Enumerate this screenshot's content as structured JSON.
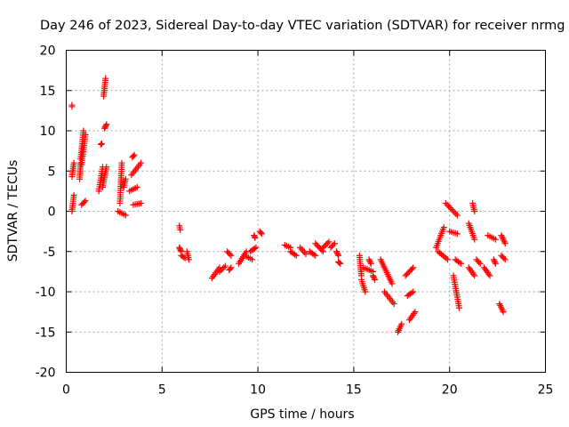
{
  "chart_data": {
    "type": "scatter",
    "title": "Day 246 of 2023, Sidereal Day-to-day VTEC variation (SDTVAR) for receiver nrmg",
    "xlabel": "GPS time / hours",
    "ylabel": "SDTVAR / TECUs",
    "xlim": [
      0,
      25
    ],
    "ylim": [
      -20,
      20
    ],
    "x_ticks": [
      0,
      5,
      10,
      15,
      20,
      25
    ],
    "y_ticks": [
      -20,
      -15,
      -10,
      -5,
      0,
      5,
      10,
      15,
      20
    ],
    "x_tick_labels": [
      "0",
      "5",
      "10",
      "15",
      "20",
      "25"
    ],
    "y_tick_labels": [
      "-20",
      "-15",
      "-10",
      "-5",
      "0",
      "5",
      "10",
      "15",
      "20"
    ],
    "grid": true,
    "legend": "none",
    "marker": "+",
    "color": "#ff0000",
    "segments": [
      [
        0.3,
        13.0,
        0.3,
        13.2
      ],
      [
        0.3,
        0.0,
        0.4,
        2.0
      ],
      [
        0.3,
        4.3,
        0.4,
        6.0
      ],
      [
        0.7,
        4.0,
        0.75,
        6.0
      ],
      [
        0.75,
        6.5,
        0.9,
        10.0
      ],
      [
        0.8,
        0.8,
        1.0,
        1.3
      ],
      [
        0.8,
        5.8,
        1.0,
        9.5
      ],
      [
        1.8,
        8.3,
        1.85,
        8.4
      ],
      [
        1.7,
        2.5,
        1.9,
        5.5
      ],
      [
        1.9,
        3.0,
        2.1,
        5.5
      ],
      [
        2.0,
        10.3,
        2.1,
        10.8
      ],
      [
        1.95,
        14.3,
        2.05,
        16.5
      ],
      [
        2.8,
        1.0,
        2.9,
        6.0
      ],
      [
        2.7,
        0.0,
        3.1,
        -0.5
      ],
      [
        3.0,
        3.0,
        3.1,
        4.0
      ],
      [
        3.3,
        2.5,
        3.7,
        3.0
      ],
      [
        3.45,
        6.7,
        3.55,
        7.0
      ],
      [
        3.5,
        0.8,
        3.9,
        1.0
      ],
      [
        3.4,
        4.5,
        3.9,
        6.0
      ],
      [
        5.9,
        -1.8,
        5.95,
        -2.3
      ],
      [
        5.9,
        -4.5,
        6.0,
        -5.0
      ],
      [
        6.0,
        -5.5,
        6.2,
        -5.8
      ],
      [
        6.3,
        -5.0,
        6.4,
        -6.0
      ],
      [
        7.6,
        -8.3,
        8.0,
        -7.0
      ],
      [
        8.0,
        -7.5,
        8.3,
        -6.8
      ],
      [
        8.4,
        -5.0,
        8.6,
        -5.5
      ],
      [
        8.5,
        -7.3,
        8.6,
        -7.0
      ],
      [
        9.0,
        -6.5,
        9.4,
        -5.0
      ],
      [
        9.3,
        -5.5,
        9.7,
        -6.0
      ],
      [
        9.6,
        -5.0,
        9.9,
        -4.5
      ],
      [
        9.8,
        -3.0,
        9.85,
        -3.3
      ],
      [
        10.1,
        -2.5,
        10.2,
        -2.8
      ],
      [
        11.4,
        -4.2,
        11.7,
        -4.5
      ],
      [
        11.7,
        -5.0,
        12.0,
        -5.5
      ],
      [
        12.2,
        -4.5,
        12.5,
        -5.3
      ],
      [
        12.7,
        -5.0,
        13.0,
        -5.5
      ],
      [
        13.0,
        -4.0,
        13.4,
        -5.0
      ],
      [
        13.4,
        -4.5,
        13.7,
        -3.8
      ],
      [
        13.8,
        -4.5,
        14.0,
        -4.0
      ],
      [
        14.1,
        -5.0,
        14.2,
        -5.5
      ],
      [
        14.2,
        -6.3,
        14.3,
        -6.5
      ],
      [
        15.3,
        -5.5,
        15.4,
        -8.0
      ],
      [
        15.4,
        -8.5,
        15.6,
        -10.0
      ],
      [
        15.5,
        -7.0,
        16.0,
        -7.5
      ],
      [
        15.8,
        -6.0,
        15.9,
        -6.5
      ],
      [
        16.0,
        -8.0,
        16.1,
        -8.5
      ],
      [
        16.4,
        -6.0,
        17.0,
        -9.0
      ],
      [
        16.6,
        -10.0,
        17.1,
        -11.5
      ],
      [
        17.3,
        -15.0,
        17.5,
        -14.0
      ],
      [
        17.7,
        -8.0,
        18.1,
        -7.0
      ],
      [
        17.8,
        -10.5,
        18.1,
        -10.0
      ],
      [
        17.9,
        -13.5,
        18.2,
        -12.5
      ],
      [
        19.3,
        -4.5,
        19.7,
        -2.0
      ],
      [
        19.4,
        -5.0,
        19.9,
        -6.0
      ],
      [
        19.8,
        1.0,
        20.4,
        -0.5
      ],
      [
        20.0,
        -2.5,
        20.4,
        -2.8
      ],
      [
        20.2,
        -8.0,
        20.5,
        -12.0
      ],
      [
        20.3,
        -6.0,
        20.6,
        -6.5
      ],
      [
        21.2,
        1.0,
        21.3,
        0.0
      ],
      [
        21.0,
        -1.5,
        21.3,
        -3.5
      ],
      [
        21.0,
        -7.0,
        21.3,
        -8.0
      ],
      [
        21.4,
        -6.0,
        21.6,
        -6.5
      ],
      [
        21.8,
        -7.0,
        22.1,
        -8.0
      ],
      [
        22.0,
        -3.0,
        22.4,
        -3.5
      ],
      [
        22.3,
        -6.0,
        22.4,
        -6.5
      ],
      [
        22.6,
        -11.5,
        22.8,
        -12.5
      ],
      [
        22.7,
        -3.0,
        22.9,
        -4.0
      ],
      [
        22.7,
        -5.5,
        22.9,
        -6.0
      ]
    ]
  }
}
